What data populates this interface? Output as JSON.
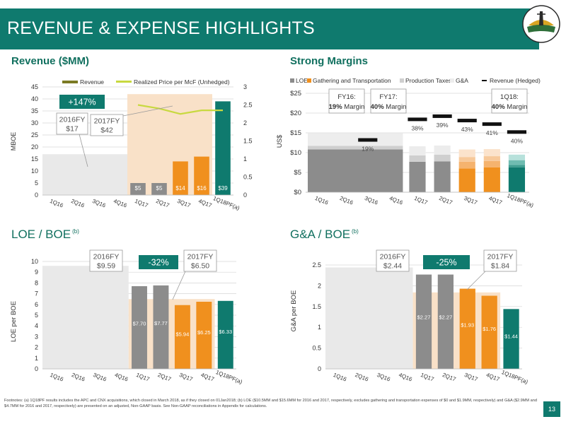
{
  "title": "REVENUE & EXPENSE HIGHLIGHTS",
  "footnote": "Footnotes: (a) 1Q18PF results includes the APC and CNX acquisitions, which closed in March 2018, as if they closed on 01Jan2018; (b) LOE ($10.5MM and $15.6MM for 2016 and 2017, respectively, excludes gathering and transportation expenses of $0 and $1.9MM, respectively) and G&A ($2.9MM and $4.7MM for 2016 and 2017, respectively) are presented on an adjusted, Non-GAAP basis. See Non-GAAP reconciliations in Appendix for calculations.",
  "page_number": "13",
  "colors": {
    "teal": "#0f7a6e",
    "orange": "#f0901e",
    "gray": "#8c8c8c",
    "light_gray": "#e9e9e9",
    "light_orange": "#f9e1c8",
    "yellow_green": "#c8d940",
    "olive": "#7b7a23"
  },
  "chart_data": [
    {
      "id": "revenue",
      "type": "bar",
      "title": "Revenue ($MM)",
      "ylabel": "MBOE",
      "ylim": [
        0,
        45
      ],
      "y2lim": [
        0,
        3
      ],
      "yticks": [
        0,
        5,
        10,
        15,
        20,
        25,
        30,
        35,
        40,
        45
      ],
      "y2ticks": [
        "0",
        "0.5",
        "1",
        "1.5",
        "2",
        "2.5",
        "3"
      ],
      "categories": [
        "1Q16",
        "2Q16",
        "3Q16",
        "4Q16",
        "1Q17",
        "2Q17",
        "3Q17",
        "4Q17",
        "1Q18PF(a)"
      ],
      "legend": [
        "Revenue",
        "Realized Price per McF (Unhedged)"
      ],
      "series": [
        {
          "name": "Revenue",
          "values": [
            null,
            null,
            null,
            null,
            5,
            5,
            14,
            16,
            39
          ],
          "labels": [
            "",
            "",
            "",
            "",
            "$5",
            "$5",
            "$14",
            "$16",
            "$39"
          ],
          "colors": [
            "#8c8c8c",
            "#8c8c8c",
            "#8c8c8c",
            "#8c8c8c",
            "#8c8c8c",
            "#8c8c8c",
            "#f0901e",
            "#f0901e",
            "#0f7a6e"
          ]
        },
        {
          "name": "Realized Price per McF (Unhedged)",
          "values": [
            null,
            null,
            null,
            null,
            2.5,
            2.4,
            2.25,
            2.35,
            2.35
          ]
        }
      ],
      "fy_backdrops": [
        {
          "from": 0,
          "to": 3,
          "value": 17,
          "color": "#e9e9e9"
        },
        {
          "from": 4,
          "to": 7,
          "value": 42,
          "color": "#f9e1c8"
        }
      ],
      "callouts": [
        {
          "line1": "2016FY",
          "line2": "$17"
        },
        {
          "line1": "2017FY",
          "line2": "$42"
        }
      ],
      "change_badge": "+147%"
    },
    {
      "id": "margins",
      "type": "bar",
      "title": "Strong Margins",
      "ylabel": "US$",
      "ylim": [
        0,
        25
      ],
      "yticks": [
        "$0",
        "$5",
        "$10",
        "$15",
        "$20",
        "$25"
      ],
      "categories": [
        "1Q16",
        "2Q16",
        "3Q16",
        "4Q16",
        "1Q17",
        "2Q17",
        "3Q17",
        "4Q17",
        "1Q18PF(a)"
      ],
      "legend": [
        "LOE",
        "Gathering and Transportation",
        "Production Taxes",
        "G&A",
        "Revenue (Hedged)"
      ],
      "fy_stack": {
        "from": 0,
        "to": 3,
        "loe": 10.8,
        "gt": 0,
        "pt": 0.9,
        "ga": 3.2
      },
      "series": [
        {
          "name": "LOE",
          "values": [
            null,
            null,
            null,
            null,
            7.7,
            7.8,
            6.0,
            6.3,
            6.3
          ]
        },
        {
          "name": "Gathering and Transportation",
          "values": [
            null,
            null,
            null,
            null,
            0,
            0,
            1.7,
            1.6,
            0.6
          ]
        },
        {
          "name": "Production Taxes",
          "values": [
            null,
            null,
            null,
            null,
            1.6,
            1.7,
            1.2,
            1.2,
            1.2
          ]
        },
        {
          "name": "G&A",
          "values": [
            null,
            null,
            null,
            null,
            2.3,
            2.3,
            1.9,
            1.8,
            1.4
          ]
        },
        {
          "name": "Revenue (Hedged)",
          "values": [
            null,
            null,
            13.3,
            null,
            18.5,
            19.3,
            18.2,
            17.3,
            15.3
          ]
        }
      ],
      "margin_labels": [
        null,
        null,
        "19%",
        null,
        "38%",
        "39%",
        "43%",
        "41%",
        "40%"
      ],
      "boxes": [
        {
          "line1": "FY16:",
          "bold": "19%",
          "line2": " Margin"
        },
        {
          "line1": "FY17:",
          "bold": "40%",
          "line2": " Margin"
        },
        {
          "line1": "1Q18:",
          "bold": "40%",
          "line2": " Margin"
        }
      ]
    },
    {
      "id": "loe_boe",
      "type": "bar",
      "title": "LOE / BOE",
      "title_sup": "(b)",
      "ylabel": "LOE per BOE",
      "ylim": [
        0,
        10
      ],
      "yticks": [
        0,
        1,
        2,
        3,
        4,
        5,
        6,
        7,
        8,
        9,
        10
      ],
      "categories": [
        "1Q16",
        "2Q16",
        "3Q16",
        "4Q16",
        "1Q17",
        "2Q17",
        "3Q17",
        "4Q17",
        "1Q18PF(a)"
      ],
      "series": [
        {
          "name": "LOE per BOE",
          "values": [
            null,
            null,
            null,
            null,
            7.7,
            7.77,
            5.94,
            6.25,
            6.33
          ],
          "labels": [
            "",
            "",
            "",
            "",
            "$7.70",
            "$7.77",
            "$5.94",
            "$6.25",
            "$6.33"
          ],
          "colors": [
            "#8c8c8c",
            "#8c8c8c",
            "#8c8c8c",
            "#8c8c8c",
            "#8c8c8c",
            "#8c8c8c",
            "#f0901e",
            "#f0901e",
            "#0f7a6e"
          ]
        }
      ],
      "fy_backdrops": [
        {
          "from": 0,
          "to": 3,
          "value": 9.59,
          "color": "#e9e9e9"
        },
        {
          "from": 4,
          "to": 7,
          "value": 6.5,
          "color": "#f9e1c8"
        }
      ],
      "callouts": [
        {
          "line1": "2016FY",
          "line2": "$9.59"
        },
        {
          "line1": "2017FY",
          "line2": "$6.50"
        }
      ],
      "change_badge": "-32%"
    },
    {
      "id": "ga_boe",
      "type": "bar",
      "title": "G&A / BOE",
      "title_sup": "(b)",
      "ylabel": "G&A per BOE",
      "ylim": [
        0,
        2.5
      ],
      "yticks": [
        "0",
        "0.5",
        "1",
        "1.5",
        "2",
        "2.5"
      ],
      "categories": [
        "1Q16",
        "2Q16",
        "3Q16",
        "4Q16",
        "1Q17",
        "2Q17",
        "3Q17",
        "4Q17",
        "1Q18PF(a)"
      ],
      "series": [
        {
          "name": "G&A per BOE",
          "values": [
            null,
            null,
            null,
            null,
            2.27,
            2.27,
            1.93,
            1.76,
            1.44
          ],
          "labels": [
            "",
            "",
            "",
            "",
            "$2.27",
            "$2.27",
            "$1.93",
            "$1.76",
            "$1.44"
          ],
          "colors": [
            "#8c8c8c",
            "#8c8c8c",
            "#8c8c8c",
            "#8c8c8c",
            "#8c8c8c",
            "#8c8c8c",
            "#f0901e",
            "#f0901e",
            "#0f7a6e"
          ]
        }
      ],
      "fy_backdrops": [
        {
          "from": 0,
          "to": 3,
          "value": 2.44,
          "color": "#e9e9e9"
        },
        {
          "from": 4,
          "to": 7,
          "value": 1.84,
          "color": "#f9e1c8"
        }
      ],
      "callouts": [
        {
          "line1": "2016FY",
          "line2": "$2.44"
        },
        {
          "line1": "2017FY",
          "line2": "$1.84"
        }
      ],
      "change_badge": "-25%"
    }
  ]
}
